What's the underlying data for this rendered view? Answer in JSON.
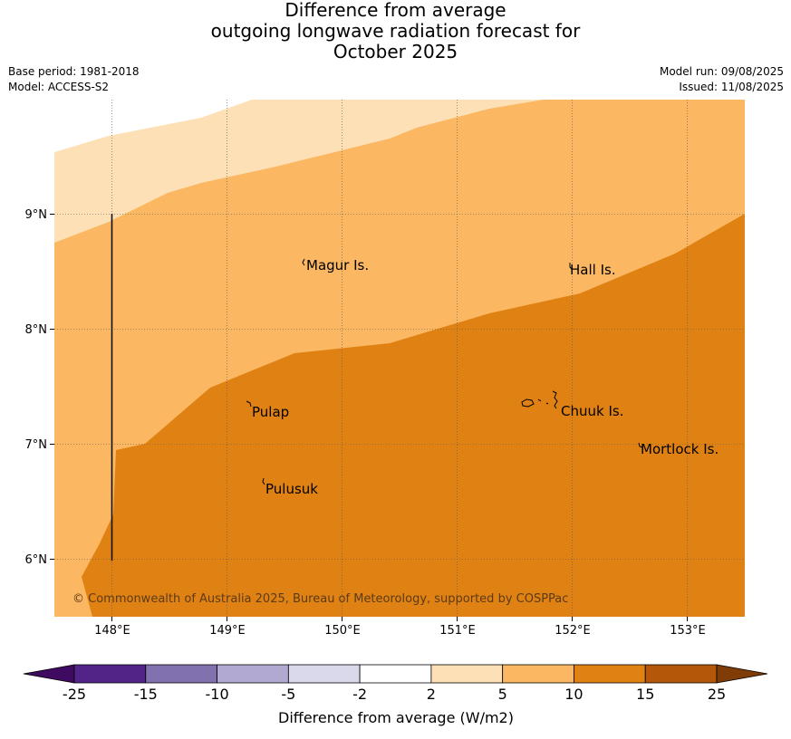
{
  "title_lines": [
    "Difference from average",
    "outgoing longwave radiation forecast for",
    "October 2025"
  ],
  "base_period": "Base period: 1981-2018",
  "model": "Model: ACCESS-S2",
  "model_run": "Model run: 09/08/2025",
  "issued": "Issued: 11/08/2025",
  "copyright": "© Commonwealth of Australia 2025, Bureau of Meteorology, supported by COSPPac",
  "map": {
    "lon_range": [
      147.5,
      153.5
    ],
    "lat_range": [
      5.5,
      10.0
    ],
    "lon_ticks": [
      "148°E",
      "149°E",
      "150°E",
      "151°E",
      "152°E",
      "153°E"
    ],
    "lat_ticks": [
      "9°N",
      "8°N",
      "7°N",
      "6°N"
    ],
    "places": [
      {
        "name": "Magur Is."
      },
      {
        "name": "Hall Is."
      },
      {
        "name": "Pulap"
      },
      {
        "name": "Chuuk Is."
      },
      {
        "name": "Mortlock Is."
      },
      {
        "name": "Pulusuk"
      }
    ]
  },
  "colorbar": {
    "label": "Difference from average (W/m2)",
    "ticks": [
      "-25",
      "-15",
      "-10",
      "-5",
      "-2",
      "2",
      "5",
      "10",
      "15",
      "25"
    ],
    "colors": [
      "#3f0b60",
      "#532487",
      "#8171ae",
      "#b2a9d3",
      "#d9d9eb",
      "#ffffff",
      "#fde0b5",
      "#fbb762",
      "#e08213",
      "#b45708",
      "#7f3c07"
    ]
  }
}
